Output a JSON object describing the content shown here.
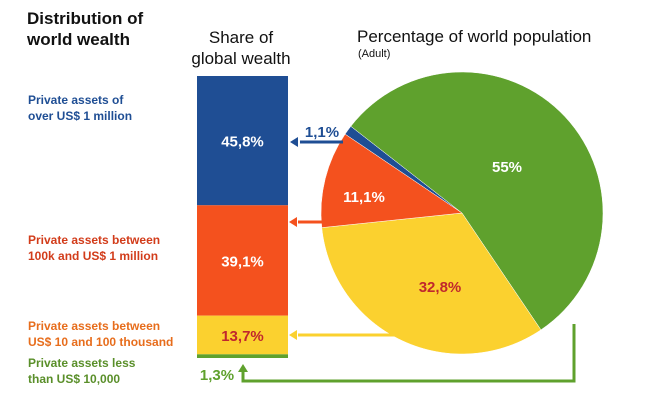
{
  "header": {
    "title_line1": "Distribution of",
    "title_line2": "world wealth",
    "bar_title_line1": "Share of",
    "bar_title_line2": "global wealth",
    "pie_title": "Percentage of world population",
    "pie_subtitle": "(Adult)"
  },
  "chart_data": {
    "type": "stacked bar + pie",
    "categories": [
      {
        "line1": "Private assets of",
        "line2": "over US$ 1 million",
        "color": "#1f4e94",
        "label_color": "#1f4e94"
      },
      {
        "line1": "Private assets between",
        "line2": "100k and US$ 1 million",
        "color": "#f4511e",
        "label_color": "#d23c1a"
      },
      {
        "line1": "Private assets between",
        "line2": "US$ 10 and 100 thousand",
        "color": "#fbd12f",
        "label_color": "#e76d1c"
      },
      {
        "line1": "Private assets less",
        "line2": "than US$ 10,000",
        "color": "#5fa12d",
        "label_color": "#5a8f2a"
      }
    ],
    "wealth_share": {
      "values": [
        45.8,
        39.1,
        13.7,
        1.3
      ],
      "labels": [
        "45,8%",
        "39,1%",
        "13,7%",
        "1,3%"
      ]
    },
    "population_share": {
      "values": [
        1.1,
        11.1,
        32.8,
        55
      ],
      "labels": [
        "1,1%",
        "11,1%",
        "32,8%",
        "55%"
      ]
    }
  }
}
